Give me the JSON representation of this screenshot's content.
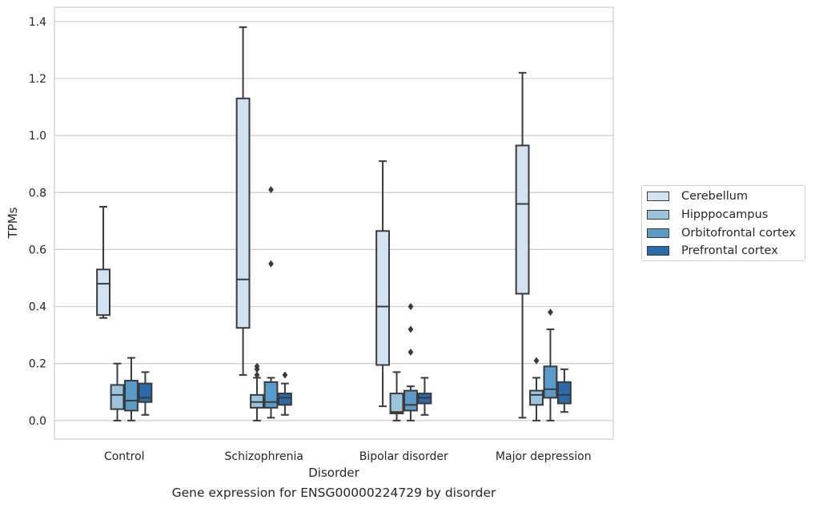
{
  "caption": "Gene expression for ENSG00000224729 by disorder",
  "chart_data": {
    "type": "box",
    "xlabel": "Disorder",
    "ylabel": "TPMs",
    "ylim": [
      -0.065,
      1.45
    ],
    "yticks": [
      "0.0",
      "0.2",
      "0.4",
      "0.6",
      "0.8",
      "1.0",
      "1.2",
      "1.4"
    ],
    "grid": true,
    "legend_position": "right",
    "categories": [
      "Control",
      "Schizophrenia",
      "Bipolar disorder",
      "Major depression"
    ],
    "series": [
      {
        "name": "Cerebellum",
        "color": "#d2e2f1",
        "boxes": [
          {
            "whisker_low": 0.36,
            "q1": 0.37,
            "median": 0.48,
            "q3": 0.53,
            "whisker_high": 0.75,
            "outliers": []
          },
          {
            "whisker_low": 0.16,
            "q1": 0.325,
            "median": 0.495,
            "q3": 1.13,
            "whisker_high": 1.38,
            "outliers": []
          },
          {
            "whisker_low": 0.05,
            "q1": 0.195,
            "median": 0.4,
            "q3": 0.665,
            "whisker_high": 0.91,
            "outliers": []
          },
          {
            "whisker_low": 0.01,
            "q1": 0.445,
            "median": 0.76,
            "q3": 0.965,
            "whisker_high": 1.22,
            "outliers": []
          }
        ]
      },
      {
        "name": "Hipppocampus",
        "color": "#9ac4de",
        "boxes": [
          {
            "whisker_low": 0.0,
            "q1": 0.04,
            "median": 0.09,
            "q3": 0.125,
            "whisker_high": 0.2,
            "outliers": []
          },
          {
            "whisker_low": 0.0,
            "q1": 0.045,
            "median": 0.065,
            "q3": 0.09,
            "whisker_high": 0.15,
            "outliers": [
              0.16,
              0.18,
              0.19
            ]
          },
          {
            "whisker_low": 0.0,
            "q1": 0.025,
            "median": 0.03,
            "q3": 0.095,
            "whisker_high": 0.17,
            "outliers": []
          },
          {
            "whisker_low": 0.0,
            "q1": 0.055,
            "median": 0.09,
            "q3": 0.105,
            "whisker_high": 0.15,
            "outliers": [
              0.21
            ]
          }
        ]
      },
      {
        "name": "Orbitofrontal cortex",
        "color": "#5a9cc9",
        "boxes": [
          {
            "whisker_low": 0.0,
            "q1": 0.035,
            "median": 0.07,
            "q3": 0.14,
            "whisker_high": 0.22,
            "outliers": []
          },
          {
            "whisker_low": 0.01,
            "q1": 0.045,
            "median": 0.065,
            "q3": 0.135,
            "whisker_high": 0.15,
            "outliers": [
              0.55,
              0.81
            ]
          },
          {
            "whisker_low": 0.0,
            "q1": 0.035,
            "median": 0.055,
            "q3": 0.105,
            "whisker_high": 0.12,
            "outliers": [
              0.24,
              0.32,
              0.4
            ]
          },
          {
            "whisker_low": 0.0,
            "q1": 0.08,
            "median": 0.11,
            "q3": 0.19,
            "whisker_high": 0.32,
            "outliers": [
              0.38
            ]
          }
        ]
      },
      {
        "name": "Prefrontal cortex",
        "color": "#2b6aab",
        "boxes": [
          {
            "whisker_low": 0.02,
            "q1": 0.065,
            "median": 0.08,
            "q3": 0.13,
            "whisker_high": 0.17,
            "outliers": []
          },
          {
            "whisker_low": 0.02,
            "q1": 0.055,
            "median": 0.08,
            "q3": 0.095,
            "whisker_high": 0.13,
            "outliers": [
              0.16
            ]
          },
          {
            "whisker_low": 0.02,
            "q1": 0.06,
            "median": 0.08,
            "q3": 0.095,
            "whisker_high": 0.15,
            "outliers": []
          },
          {
            "whisker_low": 0.03,
            "q1": 0.06,
            "median": 0.09,
            "q3": 0.135,
            "whisker_high": 0.18,
            "outliers": []
          }
        ]
      }
    ]
  }
}
